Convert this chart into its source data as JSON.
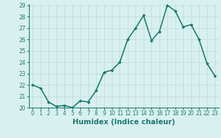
{
  "x": [
    0,
    1,
    2,
    3,
    4,
    5,
    6,
    7,
    8,
    9,
    10,
    11,
    12,
    13,
    14,
    15,
    16,
    17,
    18,
    19,
    20,
    21,
    22,
    23
  ],
  "y": [
    22.0,
    21.7,
    20.5,
    20.1,
    20.2,
    20.0,
    20.6,
    20.5,
    21.5,
    23.1,
    23.3,
    24.0,
    26.0,
    27.0,
    28.1,
    25.9,
    26.7,
    29.0,
    28.5,
    27.1,
    27.3,
    26.0,
    23.9,
    22.8
  ],
  "line_color": "#1a7a6e",
  "marker": "D",
  "marker_size": 2.0,
  "bg_color": "#d9f0f0",
  "grid_color": "#b8d8d8",
  "xlabel": "Humidex (Indice chaleur)",
  "ylim": [
    20,
    29
  ],
  "xlim": [
    -0.5,
    23.5
  ],
  "yticks": [
    20,
    21,
    22,
    23,
    24,
    25,
    26,
    27,
    28,
    29
  ],
  "xticks": [
    0,
    1,
    2,
    3,
    4,
    5,
    6,
    7,
    8,
    9,
    10,
    11,
    12,
    13,
    14,
    15,
    16,
    17,
    18,
    19,
    20,
    21,
    22,
    23
  ],
  "tick_labelsize": 5.5,
  "xlabel_fontsize": 7.5,
  "linewidth": 1.2
}
